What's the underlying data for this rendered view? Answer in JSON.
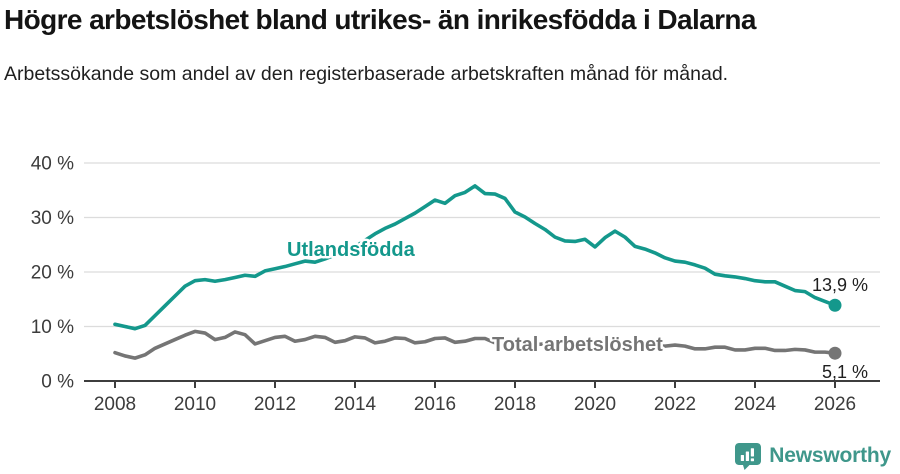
{
  "header": {
    "title": "Högre arbetslöshet bland utrikes- än inrikesfödda i Dalarna",
    "subtitle": "Arbetssökande som andel av den registerbaserade arbetskraften månad för månad."
  },
  "chart_data": {
    "type": "line",
    "title": "Högre arbetslöshet bland utrikes- än inrikesfödda i Dalarna",
    "subtitle": "Arbetssökande som andel av den registerbaserade arbetskraften månad för månad.",
    "xlabel": "",
    "ylabel": "",
    "ylim": [
      0,
      40
    ],
    "xlim": [
      2008,
      2026.2
    ],
    "grid": true,
    "legend_position": "inline-labels",
    "x_start": 2008,
    "x_step": 0.25,
    "yticks": [
      {
        "value": 0,
        "label": "0 %"
      },
      {
        "value": 10,
        "label": "10 %"
      },
      {
        "value": 20,
        "label": "20 %"
      },
      {
        "value": 30,
        "label": "30 %"
      },
      {
        "value": 40,
        "label": "40 %"
      }
    ],
    "xticks": [
      {
        "value": 2008,
        "label": "2008"
      },
      {
        "value": 2010,
        "label": "2010"
      },
      {
        "value": 2012,
        "label": "2012"
      },
      {
        "value": 2014,
        "label": "2014"
      },
      {
        "value": 2016,
        "label": "2016"
      },
      {
        "value": 2018,
        "label": "2018"
      },
      {
        "value": 2020,
        "label": "2020"
      },
      {
        "value": 2022,
        "label": "2022"
      },
      {
        "value": 2024,
        "label": "2024"
      },
      {
        "value": 2026,
        "label": "2026"
      }
    ],
    "series": [
      {
        "name": "Utlandsfödda",
        "color": "#14988c",
        "end_label": "13,9 %",
        "end_value": 13.9,
        "values": [
          10.4,
          10.0,
          9.6,
          10.2,
          12.0,
          13.8,
          15.6,
          17.4,
          18.4,
          18.6,
          18.3,
          18.6,
          19.0,
          19.4,
          19.2,
          20.2,
          20.6,
          21.0,
          21.5,
          22.0,
          21.8,
          22.4,
          23.1,
          23.8,
          24.6,
          25.8,
          27.0,
          28.0,
          28.8,
          29.8,
          30.8,
          32.0,
          33.2,
          32.6,
          34.0,
          34.6,
          35.8,
          34.4,
          34.3,
          33.5,
          31.0,
          30.1,
          28.9,
          27.8,
          26.4,
          25.7,
          25.6,
          26.0,
          24.6,
          26.3,
          27.5,
          26.4,
          24.7,
          24.2,
          23.5,
          22.6,
          22.0,
          21.8,
          21.3,
          20.7,
          19.6,
          19.3,
          19.1,
          18.8,
          18.4,
          18.2,
          18.2,
          17.4,
          16.6,
          16.4,
          15.3,
          14.6,
          13.9
        ]
      },
      {
        "name": "Total arbetslöshet",
        "color": "#757575",
        "end_label": "5,1 %",
        "end_value": 5.1,
        "values": [
          5.2,
          4.6,
          4.2,
          4.8,
          6.0,
          6.8,
          7.6,
          8.4,
          9.1,
          8.8,
          7.6,
          8.0,
          9.0,
          8.5,
          6.8,
          7.4,
          8.0,
          8.2,
          7.3,
          7.6,
          8.2,
          8.0,
          7.1,
          7.4,
          8.1,
          7.9,
          7.0,
          7.3,
          7.9,
          7.8,
          7.0,
          7.2,
          7.8,
          7.9,
          7.1,
          7.3,
          7.8,
          7.8,
          7.0,
          7.1,
          7.5,
          7.4,
          6.7,
          6.8,
          7.2,
          7.1,
          6.6,
          6.7,
          7.0,
          7.6,
          7.3,
          7.1,
          7.3,
          7.0,
          6.5,
          6.4,
          6.6,
          6.4,
          5.9,
          5.9,
          6.2,
          6.2,
          5.7,
          5.7,
          6.0,
          6.0,
          5.6,
          5.6,
          5.8,
          5.7,
          5.3,
          5.3,
          5.1
        ]
      }
    ],
    "colors": {
      "grid": "#dcdcdc",
      "axis": "#3d3d3d",
      "tick_text": "#3c3c3c",
      "end_label_text": "#1f1f1f"
    }
  },
  "footer": {
    "brand": "Newsworthy",
    "brand_color": "#3f978b"
  }
}
